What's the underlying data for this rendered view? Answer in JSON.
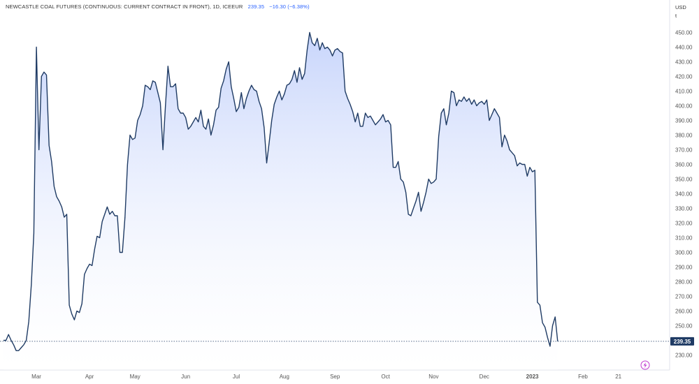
{
  "header": {
    "title": "NEWCASTLE COAL FUTURES (CONTINUOUS: CURRENT CONTRACT IN FRONT), 1D, ICEEUR",
    "last_price": "239.35",
    "change": "−16.30 (−6.38%)"
  },
  "axis": {
    "currency": "USD",
    "unit": "t"
  },
  "colors": {
    "line": "#1f3b64",
    "fill_top": "#c5d3fb",
    "fill_bottom": "#ffffff",
    "badge": "#1f3b64",
    "accent_icon": "#c03ccf"
  },
  "icons": {
    "bottom_right": "lightning-icon"
  },
  "chart_data": {
    "type": "area",
    "title": "NEWCASTLE COAL FUTURES (CONTINUOUS: CURRENT CONTRACT IN FRONT), 1D, ICEEUR",
    "xlabel": "",
    "ylabel": "USD t",
    "ylim": [
      225,
      455
    ],
    "grid": false,
    "y_ticks": [
      230,
      240,
      250,
      260,
      270,
      280,
      290,
      300,
      310,
      320,
      330,
      340,
      350,
      360,
      370,
      380,
      390,
      400,
      410,
      420,
      430,
      440,
      450
    ],
    "y_tick_labels": [
      "230.00",
      "240.00",
      "250.00",
      "260.00",
      "270.00",
      "280.00",
      "290.00",
      "300.00",
      "310.00",
      "320.00",
      "330.00",
      "340.00",
      "350.00",
      "360.00",
      "370.00",
      "380.00",
      "390.00",
      "400.00",
      "410.00",
      "420.00",
      "430.00",
      "440.00",
      "450.00"
    ],
    "x_ticks": [
      {
        "label": "Mar",
        "i": 13
      },
      {
        "label": "Apr",
        "i": 34
      },
      {
        "label": "May",
        "i": 52
      },
      {
        "label": "Jun",
        "i": 72
      },
      {
        "label": "Jul",
        "i": 92
      },
      {
        "label": "Aug",
        "i": 111
      },
      {
        "label": "Sep",
        "i": 131
      },
      {
        "label": "Oct",
        "i": 151
      },
      {
        "label": "Nov",
        "i": 170
      },
      {
        "label": "Dec",
        "i": 190
      },
      {
        "label": "2023",
        "i": 209
      },
      {
        "label": "Feb",
        "i": 229
      },
      {
        "label": "21",
        "i": 243
      }
    ],
    "last_value": 239.35,
    "last_value_label": "239.35",
    "series": [
      {
        "values": [
          240,
          240,
          244,
          240,
          237,
          233,
          233,
          235,
          237,
          240,
          253,
          278,
          313,
          440,
          370,
          420,
          423,
          421,
          373,
          362,
          345,
          338,
          335,
          331,
          324,
          326,
          264,
          258,
          254,
          260,
          259,
          265,
          285,
          289,
          292,
          291,
          302,
          311,
          310,
          321,
          326,
          331,
          326,
          328,
          325,
          325,
          300,
          300,
          324,
          360,
          380,
          377,
          378,
          390,
          394,
          400,
          414,
          413,
          411,
          417,
          416,
          409,
          402,
          370,
          400,
          427,
          413,
          413,
          415,
          398,
          395,
          395,
          392,
          384,
          386,
          389,
          392,
          389,
          397,
          386,
          384,
          391,
          380,
          387,
          397,
          399,
          412,
          417,
          425,
          430,
          413,
          405,
          396,
          399,
          409,
          398,
          405,
          410,
          414,
          411,
          410,
          403,
          398,
          385,
          361,
          375,
          390,
          401,
          406,
          410,
          404,
          408,
          414,
          415,
          418,
          424,
          416,
          426,
          418,
          422,
          438,
          450,
          443,
          441,
          446,
          438,
          443,
          439,
          440,
          438,
          434,
          438,
          439,
          437,
          436,
          410,
          405,
          401,
          396,
          389,
          395,
          386,
          386,
          395,
          392,
          393,
          390,
          387,
          389,
          391,
          394,
          389,
          390,
          387,
          358,
          358,
          362,
          350,
          348,
          341,
          326,
          325,
          330,
          335,
          341,
          328,
          334,
          341,
          350,
          347,
          348,
          350,
          379,
          395,
          398,
          387,
          395,
          410,
          409,
          400,
          404,
          403,
          406,
          403,
          405,
          401,
          404,
          400,
          402,
          403,
          401,
          404,
          390,
          394,
          398,
          395,
          392,
          372,
          380,
          376,
          370,
          368,
          366,
          359,
          361,
          360,
          360,
          352,
          358,
          355,
          356,
          266,
          264,
          252,
          249,
          242,
          236,
          250,
          256,
          239.35
        ]
      }
    ]
  }
}
